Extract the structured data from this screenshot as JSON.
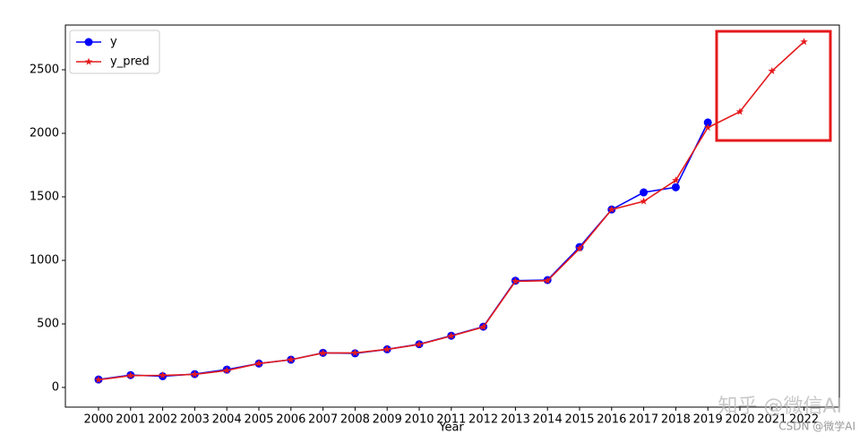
{
  "chart_data": {
    "type": "line",
    "x_label": "Year",
    "categories": [
      "2000",
      "2001",
      "2002",
      "2003",
      "2004",
      "2005",
      "2006",
      "2007",
      "2008",
      "2009",
      "2010",
      "2011",
      "2012",
      "2013",
      "2014",
      "2015",
      "2016",
      "2017",
      "2018",
      "2019",
      "2020",
      "2021",
      "2022"
    ],
    "series": [
      {
        "name": "y",
        "color": "#0000ff",
        "marker": "circle",
        "values": [
          62,
          97,
          88,
          105,
          140,
          188,
          218,
          272,
          268,
          300,
          340,
          407,
          478,
          840,
          845,
          1105,
          1400,
          1535,
          1575,
          2085,
          null,
          null,
          null
        ]
      },
      {
        "name": "y_pred",
        "color": "#e41a1c",
        "marker": "star",
        "values": [
          60,
          93,
          95,
          103,
          133,
          188,
          218,
          270,
          272,
          300,
          338,
          405,
          475,
          835,
          840,
          1093,
          1400,
          1465,
          1630,
          2045,
          2170,
          2490,
          2720
        ]
      }
    ],
    "ylim": [
      -155,
      2852
    ],
    "yticks": [
      0,
      500,
      1000,
      1500,
      2000,
      2500
    ],
    "legend": "upper left"
  },
  "watermarks": [
    "知乎 @微信AI",
    "CSDN @微学AI"
  ]
}
